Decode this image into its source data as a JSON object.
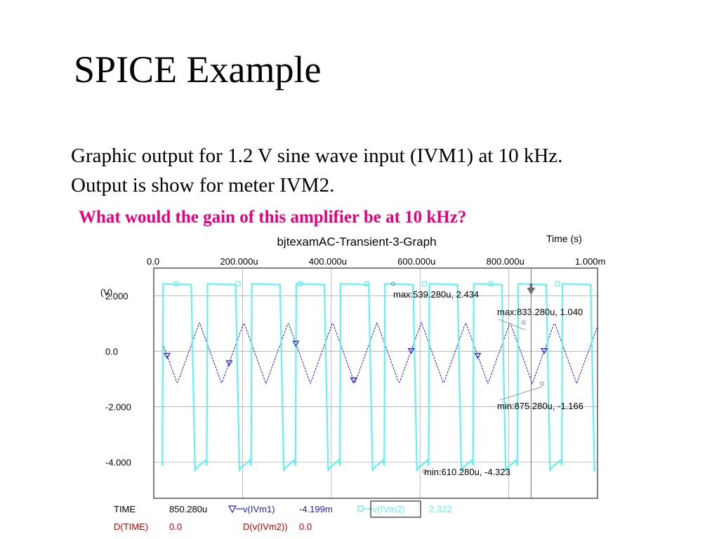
{
  "slide": {
    "title": "SPICE Example",
    "line1": "Graphic output for 1.2 V sine wave input (IVM1) at 10 kHz.",
    "line2": "Output is show for meter IVM2.",
    "question": "What would the gain of this amplifier be at 10 kHz?"
  },
  "colors": {
    "ivm1": "#1f1fcc",
    "ivm2": "#66f0f0",
    "grid": "#909090",
    "cursor_row": "#c00000"
  },
  "chart_data": {
    "type": "line",
    "title": "bjtexamAC-Transient-3-Graph",
    "xlabel": "Time  (s)",
    "ylabel": "(V)",
    "x_ticks": [
      "0.0",
      "200.000u",
      "400.000u",
      "600.000u",
      "800.000u",
      "1.000m"
    ],
    "y_ticks": [
      "2.000",
      "0.0",
      "-2.000",
      "-4.000"
    ],
    "xlim": [
      0,
      0.001
    ],
    "ylim": [
      -5.3,
      3.0
    ],
    "frequency_hz": 10000,
    "cursor_x": 0.00085028,
    "series": [
      {
        "name": "v(IVm1)",
        "waveform": "triangle",
        "max": 1.04,
        "min": -1.166,
        "color": "#1f1fcc"
      },
      {
        "name": "v(IVm2)",
        "waveform": "square",
        "max": 2.434,
        "min": -4.323,
        "color": "#66f0f0"
      }
    ],
    "annotations": [
      {
        "text": "max:539.280u, 2.434",
        "x": 0.00053928,
        "y": 2.434
      },
      {
        "text": "max:833.280u, 1.040",
        "x": 0.00083328,
        "y": 1.04
      },
      {
        "text": "min:875.280u, -1.166",
        "x": 0.00087528,
        "y": -1.166
      },
      {
        "text": "min:610.280u, -4.323",
        "x": 0.00061028,
        "y": -4.323
      }
    ],
    "cursor_readout": {
      "row1": {
        "label": "TIME",
        "time": "850.280u",
        "s1_name": "v(IVm1)",
        "s1_value": "-4.199m",
        "s2_name": "v(IVm2)",
        "s2_value": "2.322"
      },
      "row2": {
        "label": "D(TIME)",
        "value": "0.0",
        "d_label": "D(v(IVm2))",
        "d_value": "0.0"
      }
    }
  }
}
